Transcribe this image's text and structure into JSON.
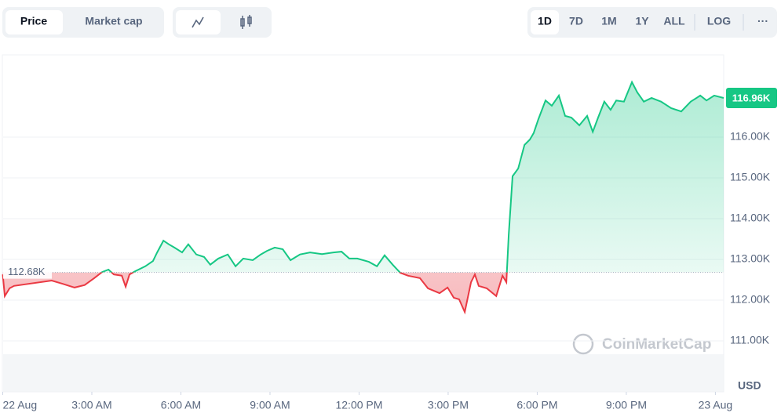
{
  "controls": {
    "metric_tabs": [
      "Price",
      "Market cap"
    ],
    "ranges": [
      "1D",
      "7D",
      "1M",
      "1Y",
      "ALL"
    ],
    "log": "LOG",
    "more": "···"
  },
  "watermark": "CoinMarketCap",
  "chart_data": {
    "type": "baseline-area",
    "x": [
      0,
      0.07,
      0.23,
      0.38,
      1.65,
      2.02,
      2.42,
      2.76,
      3.08,
      3.35,
      3.56,
      3.74,
      4.01,
      4.14,
      4.27,
      4.46,
      4.8,
      5.06,
      5.2,
      5.41,
      5.59,
      5.78,
      6.04,
      6.25,
      6.52,
      6.78,
      6.99,
      7.26,
      7.58,
      7.84,
      8.1,
      8.42,
      8.69,
      8.9,
      9.16,
      9.43,
      9.69,
      10.01,
      10.35,
      10.75,
      11.14,
      11.41,
      11.67,
      11.94,
      12.33,
      12.6,
      12.86,
      13.13,
      13.39,
      13.65,
      14.05,
      14.32,
      14.71,
      14.98,
      15.19,
      15.37,
      15.56,
      15.77,
      15.9,
      16.03,
      16.3,
      16.62,
      16.83,
      16.96,
      17.04,
      17.17,
      17.36,
      17.57,
      17.75,
      17.88,
      18.04,
      18.28,
      18.49,
      18.73,
      18.94,
      19.15,
      19.42,
      19.68,
      19.87,
      20.05,
      20.26,
      20.47,
      20.66,
      20.92,
      21.19,
      21.37,
      21.59,
      21.85,
      22.17,
      22.51,
      22.85,
      23.17,
      23.49,
      23.7,
      23.96,
      24.28
    ],
    "series": [
      {
        "up_color": "#16c784",
        "down_color": "#ea3943",
        "values": [
          112630,
          112100,
          112290,
          112350,
          112480,
          112400,
          112310,
          112370,
          112540,
          112690,
          112750,
          112630,
          112600,
          112330,
          112630,
          112710,
          112830,
          112960,
          113170,
          113460,
          113370,
          113290,
          113170,
          113370,
          113120,
          113060,
          112870,
          113020,
          113120,
          112830,
          113020,
          112980,
          113120,
          113210,
          113290,
          113250,
          112980,
          113120,
          113170,
          113130,
          113170,
          113190,
          113020,
          113020,
          112940,
          112830,
          113100,
          112870,
          112670,
          112600,
          112540,
          112290,
          112170,
          112310,
          112060,
          112020,
          111710,
          112440,
          112630,
          112350,
          112290,
          112100,
          112600,
          112440,
          113600,
          115040,
          115230,
          115810,
          115940,
          116100,
          116440,
          116900,
          116770,
          117020,
          116520,
          116480,
          116290,
          116520,
          116130,
          116480,
          116870,
          116670,
          116900,
          116870,
          117350,
          117100,
          116870,
          116960,
          116870,
          116710,
          116630,
          116870,
          117020,
          116900,
          117020,
          116960
        ]
      }
    ],
    "baseline": {
      "value": 112680,
      "label": "112.68K"
    },
    "last_price_label": "116.96K",
    "xlim": [
      0,
      24.28
    ],
    "xticks": [
      {
        "value": 0,
        "label": "22 Aug"
      },
      {
        "value": 3,
        "label": "3:00 AM"
      },
      {
        "value": 6,
        "label": "6:00 AM"
      },
      {
        "value": 9,
        "label": "9:00 AM"
      },
      {
        "value": 12,
        "label": "12:00 PM"
      },
      {
        "value": 15,
        "label": "3:00 PM"
      },
      {
        "value": 18,
        "label": "6:00 PM"
      },
      {
        "value": 21,
        "label": "9:00 PM"
      },
      {
        "value": 24,
        "label": "23 Aug"
      }
    ],
    "ylim": [
      109750,
      117980
    ],
    "yticks": [
      {
        "value": 111000,
        "label": "111.00K"
      },
      {
        "value": 112000,
        "label": "112.00K"
      },
      {
        "value": 113000,
        "label": "113.00K"
      },
      {
        "value": 114000,
        "label": "114.00K"
      },
      {
        "value": 115000,
        "label": "115.00K"
      },
      {
        "value": 116000,
        "label": "116.00K"
      }
    ],
    "y_axis_label": "USD",
    "grid": true
  }
}
